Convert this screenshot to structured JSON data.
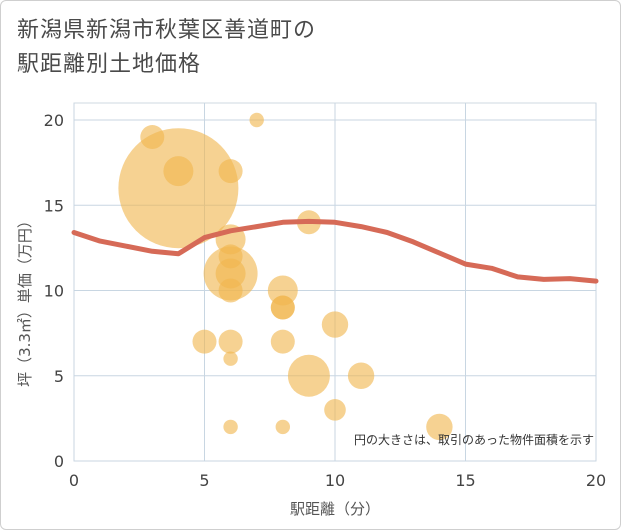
{
  "chart_data": {
    "type": "scatter",
    "title_lines": [
      "新潟県新潟市秋葉区善道町の",
      "駅距離別土地価格"
    ],
    "xlabel": "駅距離（分）",
    "ylabel": "坪（3.3㎡）単価（万円）",
    "xlim": [
      0,
      20
    ],
    "ylim": [
      0,
      20
    ],
    "xticks": [
      0,
      5,
      10,
      15,
      20
    ],
    "yticks": [
      0,
      5,
      10,
      15,
      20
    ],
    "grid": true,
    "note": "円の大きさは、取引のあった物件面積を示す",
    "colors": {
      "bubble": "#f0b64f",
      "line": "#d66a57",
      "grid": "#c8d6e2"
    },
    "bubbles": [
      {
        "x": 3,
        "y": 19,
        "size": 2
      },
      {
        "x": 4,
        "y": 16,
        "size": 10
      },
      {
        "x": 4,
        "y": 17,
        "size": 2.5
      },
      {
        "x": 6,
        "y": 17,
        "size": 2
      },
      {
        "x": 7,
        "y": 20,
        "size": 1.2
      },
      {
        "x": 6,
        "y": 13,
        "size": 2.5
      },
      {
        "x": 6,
        "y": 12,
        "size": 2
      },
      {
        "x": 6,
        "y": 11,
        "size": 4.5
      },
      {
        "x": 6,
        "y": 11,
        "size": 2.5
      },
      {
        "x": 6,
        "y": 10,
        "size": 2
      },
      {
        "x": 5,
        "y": 7,
        "size": 2
      },
      {
        "x": 6,
        "y": 7,
        "size": 2
      },
      {
        "x": 6,
        "y": 6,
        "size": 1.2
      },
      {
        "x": 6,
        "y": 2,
        "size": 1.2
      },
      {
        "x": 8,
        "y": 10,
        "size": 2.5
      },
      {
        "x": 8,
        "y": 9,
        "size": 2
      },
      {
        "x": 8,
        "y": 9,
        "size": 2
      },
      {
        "x": 8,
        "y": 7,
        "size": 2
      },
      {
        "x": 8,
        "y": 2,
        "size": 1.2
      },
      {
        "x": 9,
        "y": 14,
        "size": 2
      },
      {
        "x": 9,
        "y": 5,
        "size": 3.5
      },
      {
        "x": 10,
        "y": 8,
        "size": 2.2
      },
      {
        "x": 10,
        "y": 3,
        "size": 1.8
      },
      {
        "x": 11,
        "y": 5,
        "size": 2.2
      },
      {
        "x": 14,
        "y": 2,
        "size": 2.2
      }
    ],
    "trend": {
      "x": [
        0,
        1,
        2,
        3,
        4,
        5,
        6,
        7,
        8,
        9,
        10,
        11,
        12,
        13,
        14,
        15,
        16,
        17,
        18,
        19,
        20
      ],
      "y": [
        13.4,
        12.9,
        12.6,
        12.3,
        12.15,
        13.1,
        13.5,
        13.75,
        14.0,
        14.05,
        14.0,
        13.75,
        13.4,
        12.85,
        12.2,
        11.55,
        11.3,
        10.8,
        10.65,
        10.7,
        10.55
      ]
    }
  }
}
